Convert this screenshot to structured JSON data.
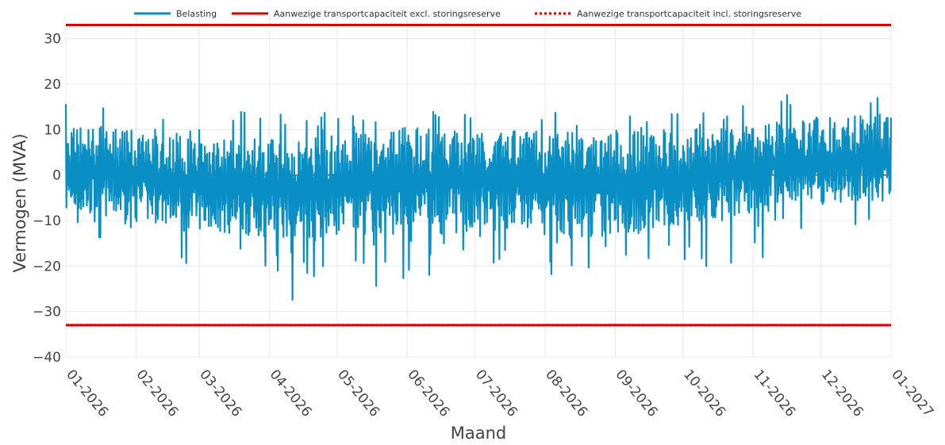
{
  "chart_data": {
    "type": "line",
    "title": "",
    "xlabel": "Maand",
    "ylabel": "Vermogen (MVA)",
    "xlim": [
      "2026-01-01",
      "2027-01-01"
    ],
    "ylim": [
      -40,
      35
    ],
    "x_ticks": [
      "01-2026",
      "02-2026",
      "03-2026",
      "04-2026",
      "05-2026",
      "06-2026",
      "07-2026",
      "08-2026",
      "09-2026",
      "10-2026",
      "11-2026",
      "12-2026",
      "01-2027"
    ],
    "y_ticks": [
      30,
      20,
      10,
      0,
      -10,
      -20,
      -30,
      -40
    ],
    "y_tick_labels": [
      "30",
      "20",
      "10",
      "0",
      "−10",
      "−20",
      "−30",
      "−40"
    ],
    "grid": true,
    "legend_position": "top",
    "legend": [
      {
        "name": "Belasting",
        "color": "#0a8fc4",
        "style": "solid"
      },
      {
        "name": "Aanwezige transportcapaciteit excl. storingsreserve",
        "color": "#e00000",
        "style": "solid"
      },
      {
        "name": "Aanwezige transportcapaciteit incl. storingsreserve",
        "color": "#e00000",
        "style": "dotted"
      }
    ],
    "series": [
      {
        "name": "Belasting",
        "color": "#0a8fc4",
        "x": [
          "2026-01-15",
          "2026-02-15",
          "2026-03-15",
          "2026-04-15",
          "2026-05-15",
          "2026-06-15",
          "2026-07-15",
          "2026-08-15",
          "2026-09-15",
          "2026-10-15",
          "2026-11-15",
          "2026-12-15"
        ],
        "max": [
          16,
          14,
          15,
          15,
          14,
          14,
          14,
          15,
          15,
          14,
          18,
          18
        ],
        "typical_high": [
          11,
          9,
          8,
          8,
          10,
          11,
          10,
          10,
          10,
          10,
          12,
          13
        ],
        "typical_low": [
          -9,
          -11,
          -13,
          -14,
          -13,
          -13,
          -12,
          -14,
          -13,
          -11,
          -6,
          -6
        ],
        "min": [
          -14,
          -20,
          -23,
          -29,
          -26,
          -23,
          -21,
          -24,
          -26,
          -22,
          -18,
          -12
        ]
      },
      {
        "name": "Aanwezige transportcapaciteit excl. storingsreserve",
        "color": "#e00000",
        "values": [
          33,
          -33
        ]
      },
      {
        "name": "Aanwezige transportcapaciteit incl. storingsreserve",
        "color": "#e00000",
        "values": [
          33,
          -33
        ]
      }
    ]
  }
}
